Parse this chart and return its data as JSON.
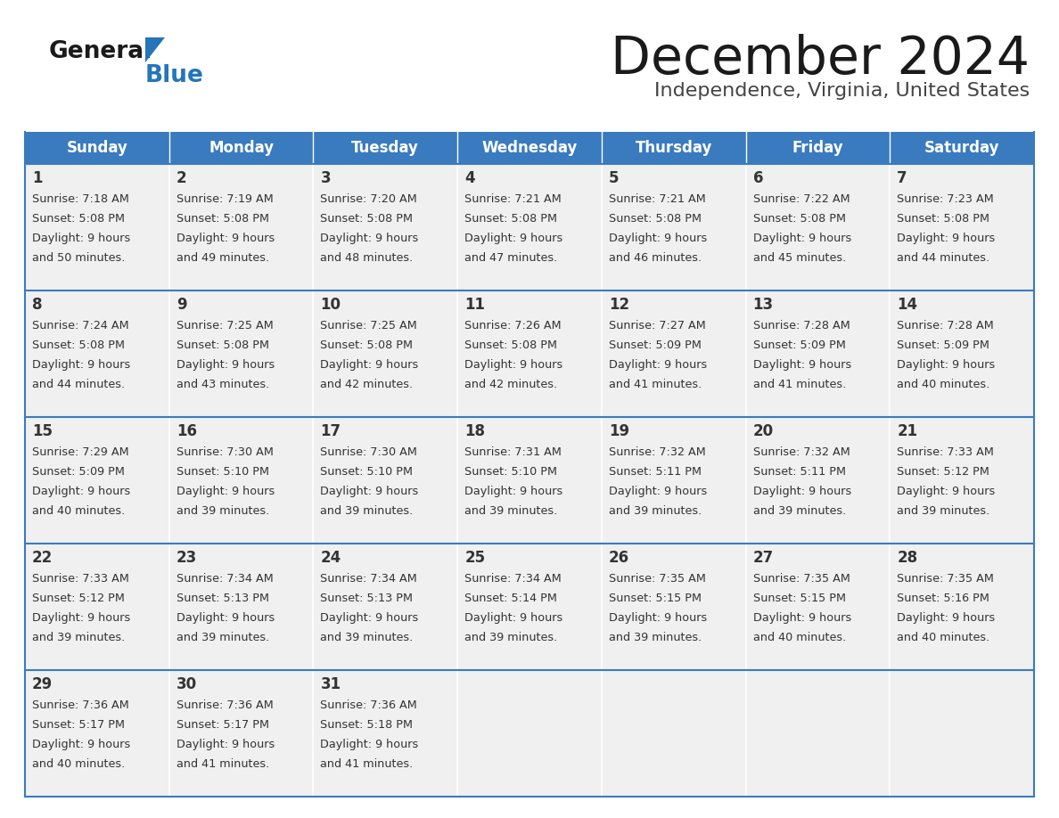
{
  "title": "December 2024",
  "subtitle": "Independence, Virginia, United States",
  "header_bg": "#3a7bbf",
  "header_text_color": "#ffffff",
  "cell_bg": "#f0f0f0",
  "day_names": [
    "Sunday",
    "Monday",
    "Tuesday",
    "Wednesday",
    "Thursday",
    "Friday",
    "Saturday"
  ],
  "border_color": "#3a7bbf",
  "text_color": "#333333",
  "calendar_data": [
    [
      {
        "day": "1",
        "sunrise": "7:18 AM",
        "sunset": "5:08 PM",
        "daylight_hrs": "9 hours",
        "daylight_min": "and 50 minutes."
      },
      {
        "day": "2",
        "sunrise": "7:19 AM",
        "sunset": "5:08 PM",
        "daylight_hrs": "9 hours",
        "daylight_min": "and 49 minutes."
      },
      {
        "day": "3",
        "sunrise": "7:20 AM",
        "sunset": "5:08 PM",
        "daylight_hrs": "9 hours",
        "daylight_min": "and 48 minutes."
      },
      {
        "day": "4",
        "sunrise": "7:21 AM",
        "sunset": "5:08 PM",
        "daylight_hrs": "9 hours",
        "daylight_min": "and 47 minutes."
      },
      {
        "day": "5",
        "sunrise": "7:21 AM",
        "sunset": "5:08 PM",
        "daylight_hrs": "9 hours",
        "daylight_min": "and 46 minutes."
      },
      {
        "day": "6",
        "sunrise": "7:22 AM",
        "sunset": "5:08 PM",
        "daylight_hrs": "9 hours",
        "daylight_min": "and 45 minutes."
      },
      {
        "day": "7",
        "sunrise": "7:23 AM",
        "sunset": "5:08 PM",
        "daylight_hrs": "9 hours",
        "daylight_min": "and 44 minutes."
      }
    ],
    [
      {
        "day": "8",
        "sunrise": "7:24 AM",
        "sunset": "5:08 PM",
        "daylight_hrs": "9 hours",
        "daylight_min": "and 44 minutes."
      },
      {
        "day": "9",
        "sunrise": "7:25 AM",
        "sunset": "5:08 PM",
        "daylight_hrs": "9 hours",
        "daylight_min": "and 43 minutes."
      },
      {
        "day": "10",
        "sunrise": "7:25 AM",
        "sunset": "5:08 PM",
        "daylight_hrs": "9 hours",
        "daylight_min": "and 42 minutes."
      },
      {
        "day": "11",
        "sunrise": "7:26 AM",
        "sunset": "5:08 PM",
        "daylight_hrs": "9 hours",
        "daylight_min": "and 42 minutes."
      },
      {
        "day": "12",
        "sunrise": "7:27 AM",
        "sunset": "5:09 PM",
        "daylight_hrs": "9 hours",
        "daylight_min": "and 41 minutes."
      },
      {
        "day": "13",
        "sunrise": "7:28 AM",
        "sunset": "5:09 PM",
        "daylight_hrs": "9 hours",
        "daylight_min": "and 41 minutes."
      },
      {
        "day": "14",
        "sunrise": "7:28 AM",
        "sunset": "5:09 PM",
        "daylight_hrs": "9 hours",
        "daylight_min": "and 40 minutes."
      }
    ],
    [
      {
        "day": "15",
        "sunrise": "7:29 AM",
        "sunset": "5:09 PM",
        "daylight_hrs": "9 hours",
        "daylight_min": "and 40 minutes."
      },
      {
        "day": "16",
        "sunrise": "7:30 AM",
        "sunset": "5:10 PM",
        "daylight_hrs": "9 hours",
        "daylight_min": "and 39 minutes."
      },
      {
        "day": "17",
        "sunrise": "7:30 AM",
        "sunset": "5:10 PM",
        "daylight_hrs": "9 hours",
        "daylight_min": "and 39 minutes."
      },
      {
        "day": "18",
        "sunrise": "7:31 AM",
        "sunset": "5:10 PM",
        "daylight_hrs": "9 hours",
        "daylight_min": "and 39 minutes."
      },
      {
        "day": "19",
        "sunrise": "7:32 AM",
        "sunset": "5:11 PM",
        "daylight_hrs": "9 hours",
        "daylight_min": "and 39 minutes."
      },
      {
        "day": "20",
        "sunrise": "7:32 AM",
        "sunset": "5:11 PM",
        "daylight_hrs": "9 hours",
        "daylight_min": "and 39 minutes."
      },
      {
        "day": "21",
        "sunrise": "7:33 AM",
        "sunset": "5:12 PM",
        "daylight_hrs": "9 hours",
        "daylight_min": "and 39 minutes."
      }
    ],
    [
      {
        "day": "22",
        "sunrise": "7:33 AM",
        "sunset": "5:12 PM",
        "daylight_hrs": "9 hours",
        "daylight_min": "and 39 minutes."
      },
      {
        "day": "23",
        "sunrise": "7:34 AM",
        "sunset": "5:13 PM",
        "daylight_hrs": "9 hours",
        "daylight_min": "and 39 minutes."
      },
      {
        "day": "24",
        "sunrise": "7:34 AM",
        "sunset": "5:13 PM",
        "daylight_hrs": "9 hours",
        "daylight_min": "and 39 minutes."
      },
      {
        "day": "25",
        "sunrise": "7:34 AM",
        "sunset": "5:14 PM",
        "daylight_hrs": "9 hours",
        "daylight_min": "and 39 minutes."
      },
      {
        "day": "26",
        "sunrise": "7:35 AM",
        "sunset": "5:15 PM",
        "daylight_hrs": "9 hours",
        "daylight_min": "and 39 minutes."
      },
      {
        "day": "27",
        "sunrise": "7:35 AM",
        "sunset": "5:15 PM",
        "daylight_hrs": "9 hours",
        "daylight_min": "and 40 minutes."
      },
      {
        "day": "28",
        "sunrise": "7:35 AM",
        "sunset": "5:16 PM",
        "daylight_hrs": "9 hours",
        "daylight_min": "and 40 minutes."
      }
    ],
    [
      {
        "day": "29",
        "sunrise": "7:36 AM",
        "sunset": "5:17 PM",
        "daylight_hrs": "9 hours",
        "daylight_min": "and 40 minutes."
      },
      {
        "day": "30",
        "sunrise": "7:36 AM",
        "sunset": "5:17 PM",
        "daylight_hrs": "9 hours",
        "daylight_min": "and 41 minutes."
      },
      {
        "day": "31",
        "sunrise": "7:36 AM",
        "sunset": "5:18 PM",
        "daylight_hrs": "9 hours",
        "daylight_min": "and 41 minutes."
      },
      null,
      null,
      null,
      null
    ]
  ]
}
